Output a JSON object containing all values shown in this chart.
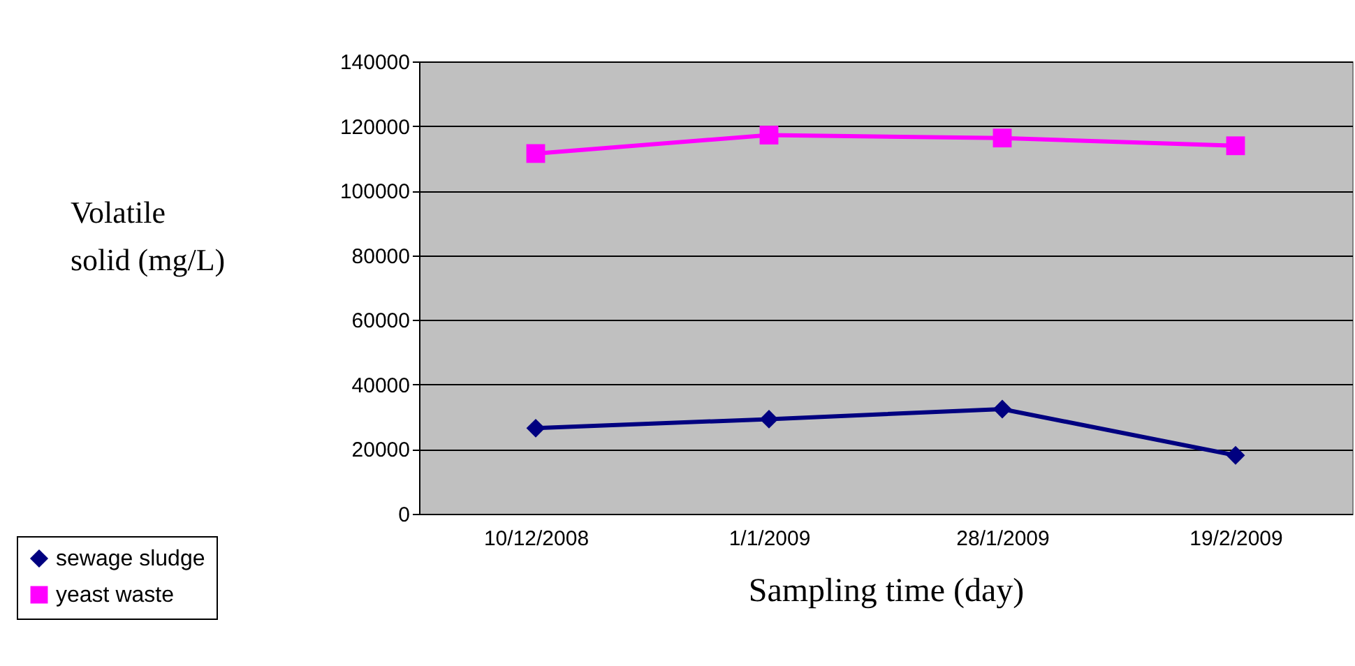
{
  "chart_data": {
    "type": "line",
    "xlabel": "Sampling time (day)",
    "ylabel": "Volatile solid (mg/L)",
    "categories": [
      "10/12/2008",
      "1/1/2009",
      "28/1/2009",
      "19/2/2009"
    ],
    "series": [
      {
        "name": "sewage sludge",
        "color": "#000080",
        "marker": "diamond",
        "values": [
          26500,
          29300,
          32400,
          18100
        ]
      },
      {
        "name": "yeast waste",
        "color": "#ff00ff",
        "marker": "square",
        "values": [
          111500,
          117200,
          116300,
          113900
        ]
      }
    ],
    "ylim": [
      0,
      140000
    ],
    "yticks": [
      0,
      20000,
      40000,
      60000,
      80000,
      100000,
      120000,
      140000
    ],
    "grid": "y",
    "legend": "bottom left",
    "line_style": "solid"
  }
}
